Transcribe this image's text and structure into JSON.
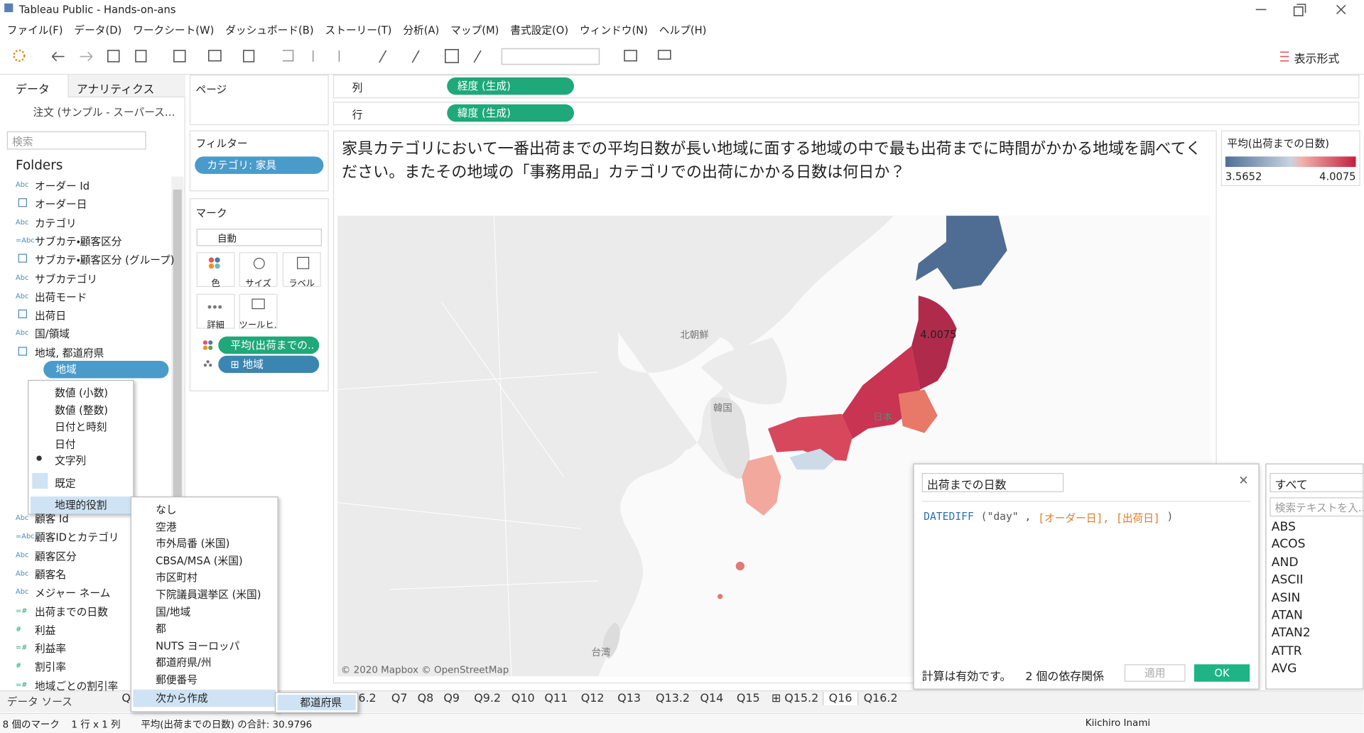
{
  "window": {
    "title": "Tableau Public - Hands-on-ans"
  },
  "menu": [
    "ファイル(F)",
    "データ(D)",
    "ワークシート(W)",
    "ダッシュボード(B)",
    "ストーリー(T)",
    "分析(A)",
    "マップ(M)",
    "書式設定(O)",
    "ウィンドウ(N)",
    "ヘルプ(H)"
  ],
  "toolbar": {
    "show_me": "表示形式"
  },
  "data_pane": {
    "tabs": [
      "データ",
      "アナリティクス"
    ],
    "source": "注文 (サンプル - スーパース…",
    "search": "検索",
    "folders": "Folders",
    "fields": [
      {
        "icon": "Abc",
        "name": "オーダー Id"
      },
      {
        "name": "オーダー日"
      },
      {
        "icon": "Abc",
        "name": "カテゴリ"
      },
      {
        "icon": "=Abc",
        "name": "サブカテ・顧客区分"
      },
      {
        "name": "サブカテ・顧客区分 (グループ)"
      },
      {
        "icon": "Abc",
        "name": "サブカテゴリ"
      },
      {
        "icon": "Abc",
        "name": "出荷モード"
      },
      {
        "name": "出荷日"
      },
      {
        "icon": "Abc",
        "name": "国/領域"
      },
      {
        "name": "地域, 都道府県"
      }
    ],
    "selected_field": "地域",
    "fields_lower": [
      {
        "icon": "Abc",
        "name": "顧客 Id"
      },
      {
        "icon": "=Abc",
        "name": "顧客IDとカテゴリ"
      },
      {
        "icon": "Abc",
        "name": "顧客区分"
      },
      {
        "icon": "Abc",
        "name": "顧客名"
      },
      {
        "icon": "Abc",
        "name": "メジャー ネーム"
      },
      {
        "icon": "=#",
        "name": "出荷までの日数"
      },
      {
        "icon": "#",
        "name": "利益"
      },
      {
        "icon": "=#",
        "name": "利益率"
      },
      {
        "icon": "#",
        "name": "割引率"
      },
      {
        "icon": "=#",
        "name": "地域ごとの割引率"
      }
    ]
  },
  "cards": {
    "pages": "ページ",
    "filters": "フィルター",
    "filter_pill": "カテゴリ: 家具",
    "marks": "マーク",
    "mark_type": "自動",
    "mark_buttons": [
      "色",
      "サイズ",
      "ラベル",
      "詳細",
      "ツールヒ…"
    ],
    "mark_pills": [
      "平均(出荷までの..",
      "⊞ 地域"
    ]
  },
  "shelves": {
    "columns": "列",
    "columns_pill": "経度 (生成)",
    "rows": "行",
    "rows_pill": "緯度 (生成)"
  },
  "view": {
    "question": [
      "家具カテゴリにおいて一番出荷までの平均日数が長い地域に面する地域の中で最も出荷までに時間がかかる地域を調べてく",
      "ださい。またその地域の「事務用品」カテゴリでの出荷にかかる日数は何日か？"
    ],
    "map_labels": [
      "北朝鮮",
      "韓国",
      "日本",
      "台湾"
    ],
    "value_label": "4.0075",
    "attribution": "© 2020 Mapbox © OpenStreetMap"
  },
  "legend": {
    "title": "平均(出荷までの日数)",
    "min": "3.5652",
    "max": "4.0075"
  },
  "context_menu": {
    "items": [
      "数値 (小数)",
      "数値 (整数)",
      "日付と時刻",
      "日付",
      "文字列",
      "既定",
      "地理的役割"
    ],
    "geo_roles": [
      "なし",
      "空港",
      "市外局番 (米国)",
      "CBSA/MSA (米国)",
      "市区町村",
      "下院議員選挙区 (米国)",
      "国/地域",
      "都",
      "NUTS ヨーロッパ",
      "都道府県/州",
      "郵便番号",
      "次から作成"
    ],
    "create_from": [
      "都道府県"
    ]
  },
  "calc": {
    "name": "出荷までの日数",
    "formula": [
      "DATEDIFF",
      "(\"day\" ,",
      "[オーダー日],",
      "[出荷日]",
      ")"
    ],
    "status": "計算は有効です。",
    "deps": "2 個の依存関係",
    "apply": "適用",
    "ok": "OK",
    "filter": "すべて",
    "search": "検索テキストを入…",
    "functions": [
      "ABS",
      "ACOS",
      "AND",
      "ASCII",
      "ASIN",
      "ATAN",
      "ATAN2",
      "ATTR",
      "AVG"
    ]
  },
  "tabs": {
    "data_source": "データ ソース",
    "sheets": [
      "Q",
      "6.2",
      "Q7",
      "Q8",
      "Q9",
      "Q9.2",
      "Q10",
      "Q11",
      "Q12",
      "Q13",
      "Q13.2",
      "Q14",
      "Q15",
      "⊞ Q15.2",
      "Q16",
      "Q16.2"
    ]
  },
  "status": {
    "marks": "8 個のマーク",
    "grid": "1 行 x 1 列",
    "sum": "平均(出荷までの日数) の合計: 30.9796",
    "user": "Kiichiro Inami"
  }
}
